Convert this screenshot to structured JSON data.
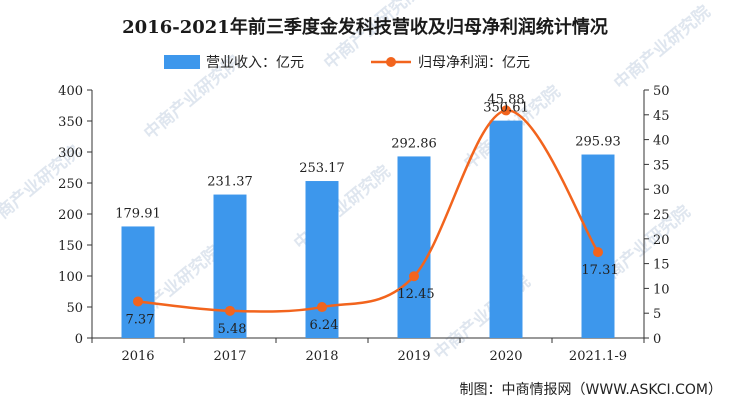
{
  "chart_data": {
    "type": "bar",
    "title": "2016-2021年前三季度金发科技营收及归母净利润统计情况",
    "categories": [
      "2016",
      "2017",
      "2018",
      "2019",
      "2020",
      "2021.1-9"
    ],
    "series": [
      {
        "name": "营业收入：亿元",
        "type": "bar",
        "axis": "left",
        "color": "#3d97ec",
        "values": [
          179.91,
          231.37,
          253.17,
          292.86,
          350.61,
          295.93
        ],
        "labels": [
          "179.91",
          "231.37",
          "253.17",
          "292.86",
          "350.61",
          "295.93"
        ]
      },
      {
        "name": "归母净利润：亿元",
        "type": "line",
        "axis": "right",
        "color": "#f2641d",
        "values": [
          7.37,
          5.48,
          6.24,
          12.45,
          45.88,
          17.31
        ],
        "labels": [
          "7.37",
          "5.48",
          "6.24",
          "12.45",
          "45.88",
          "17.31"
        ]
      }
    ],
    "ylim_left": [
      0,
      400
    ],
    "yticks_left": [
      "0",
      "50",
      "100",
      "150",
      "200",
      "250",
      "300",
      "350",
      "400"
    ],
    "ylim_right": [
      0,
      50
    ],
    "yticks_right": [
      "0",
      "5",
      "10",
      "15",
      "20",
      "25",
      "30",
      "35",
      "40",
      "45",
      "50"
    ],
    "legend_position": "top-center",
    "source": "制图：中商情报网（WWW.ASKCI.COM）",
    "watermark": "中商产业研究院"
  }
}
